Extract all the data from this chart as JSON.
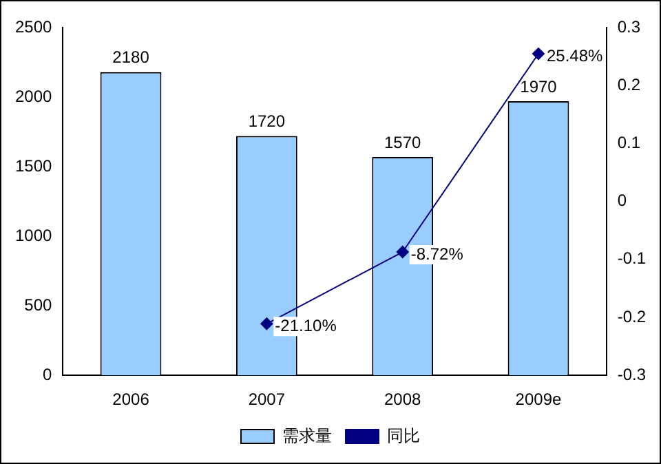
{
  "chart_data": {
    "type": "bar",
    "categories": [
      "2006",
      "2007",
      "2008",
      "2009e"
    ],
    "series": [
      {
        "name": "需求量",
        "color": "#99ccff",
        "values": [
          2180,
          1720,
          1570,
          1970
        ],
        "value_labels": [
          "2180",
          "1720",
          "1570",
          "1970"
        ]
      },
      {
        "name": "同比",
        "type": "line",
        "axis": "y2",
        "color": "#000080",
        "values": [
          null,
          -0.211,
          -0.0872,
          0.2548
        ],
        "value_labels": [
          null,
          "-21.10%",
          "-8.72%",
          "25.48%"
        ]
      }
    ],
    "ylim": [
      0,
      2500
    ],
    "yticks": [
      0,
      500,
      1000,
      1500,
      2000,
      2500
    ],
    "y2lim": [
      -0.3,
      0.3
    ],
    "y2ticks": [
      -0.3,
      -0.2,
      -0.1,
      0,
      0.1,
      0.2,
      0.3
    ],
    "grid": false,
    "legend": "bottom",
    "marker": "diamond",
    "line_style": "solid"
  }
}
